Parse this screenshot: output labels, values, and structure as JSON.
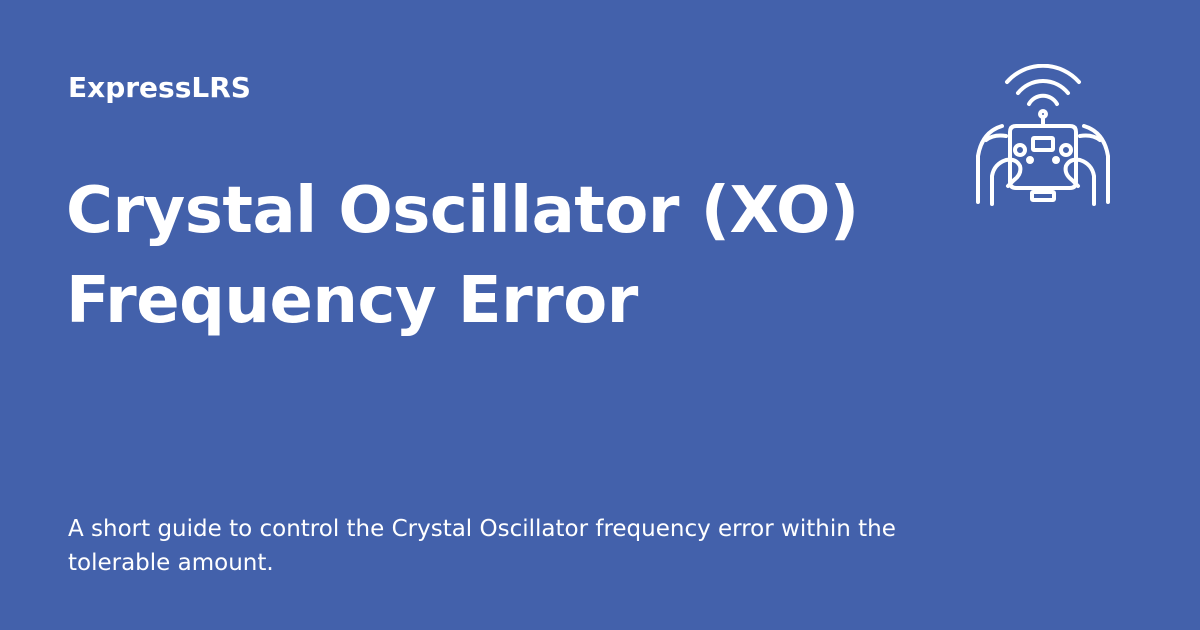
{
  "site": {
    "name": "ExpressLRS"
  },
  "article": {
    "title": "Crystal Oscillator (XO) Frequency Error",
    "description": "A short guide to control the Crystal Oscillator frequency error within the tolerable amount."
  },
  "logo": {
    "icon": "radio-controller-hands-icon"
  },
  "colors": {
    "background": "#4361ab",
    "text": "#ffffff"
  }
}
